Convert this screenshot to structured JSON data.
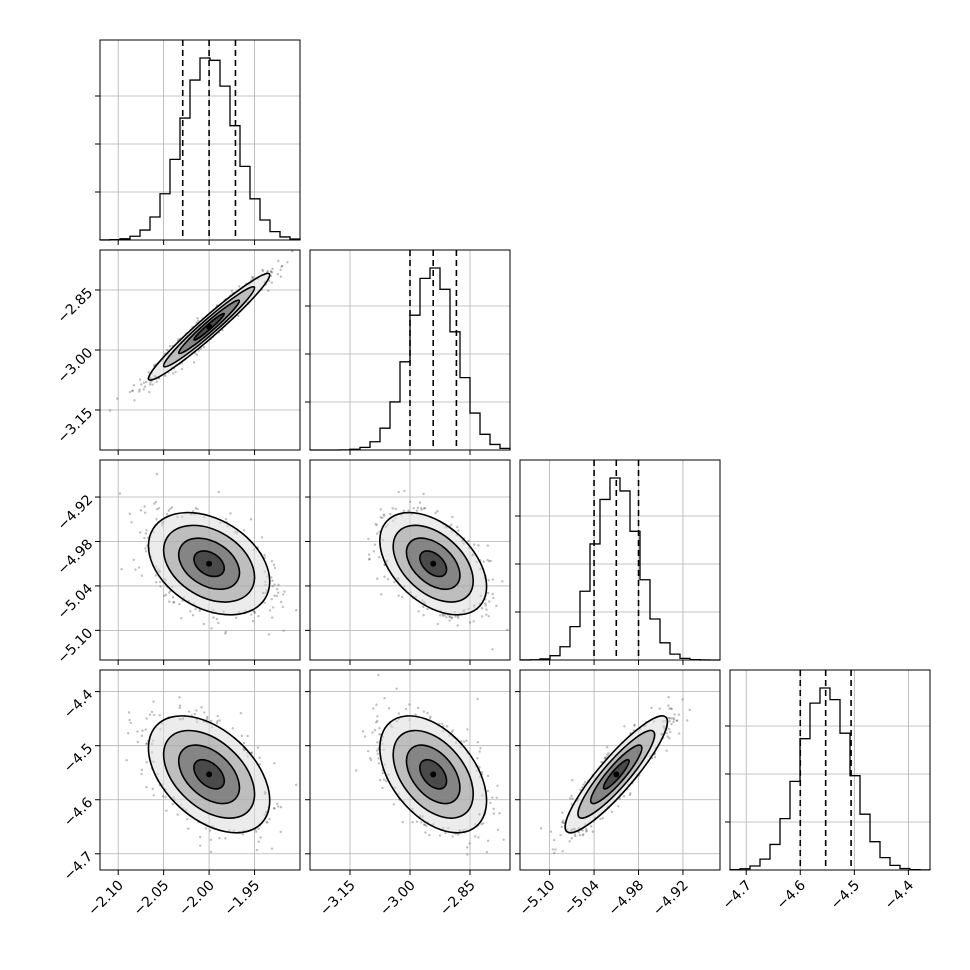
{
  "chart_data": {
    "type": "corner",
    "grid": true,
    "n_params": 4,
    "params": [
      {
        "range": [
          -2.12,
          -1.9
        ],
        "ticks": [
          -2.1,
          -2.05,
          -2.0,
          -1.95
        ],
        "tick_labels": [
          "−2.10",
          "−2.05",
          "−2.00",
          "−1.95"
        ],
        "mean": -2.0,
        "sd": 0.029,
        "quantiles": [
          -2.029,
          -2.0,
          -1.971
        ],
        "hist_peak": 0.152
      },
      {
        "range": [
          -3.25,
          -2.75
        ],
        "ticks": [
          -3.15,
          -3.0,
          -2.85
        ],
        "tick_labels": [
          "−3.15",
          "−3.00",
          "−2.85"
        ],
        "mean": -2.942,
        "sd": 0.058,
        "quantiles": [
          -3.0,
          -2.942,
          -2.884
        ],
        "hist_peak": 0.149
      },
      {
        "range": [
          -5.14,
          -4.87
        ],
        "ticks": [
          -5.1,
          -5.04,
          -4.98,
          -4.92
        ],
        "tick_labels": [
          "−5.10",
          "−5.04",
          "−4.98",
          "−4.92"
        ],
        "mean": -5.01,
        "sd": 0.03,
        "quantiles": [
          -5.04,
          -5.01,
          -4.98
        ],
        "hist_peak": 0.153
      },
      {
        "range": [
          -4.73,
          -4.36
        ],
        "ticks": [
          -4.7,
          -4.6,
          -4.5,
          -4.4
        ],
        "tick_labels": [
          "−4.7",
          "−4.6",
          "−4.5",
          "−4.4"
        ],
        "mean": -4.553,
        "sd": 0.047,
        "quantiles": [
          -4.6,
          -4.553,
          -4.506
        ],
        "hist_peak": 0.153
      }
    ],
    "correlations": {
      "1-0": 0.97,
      "2-0": -0.35,
      "2-1": -0.45,
      "3-0": -0.45,
      "3-1": -0.45,
      "3-2": 0.9
    },
    "bins": 20,
    "quantile_line_style": "dashed",
    "contour_levels_sigma": [
      0.5,
      1.0,
      1.5,
      2.0
    ],
    "colors": {
      "ink": "#000000",
      "grid": "#b0b0b0",
      "scatter": "#444444"
    }
  }
}
